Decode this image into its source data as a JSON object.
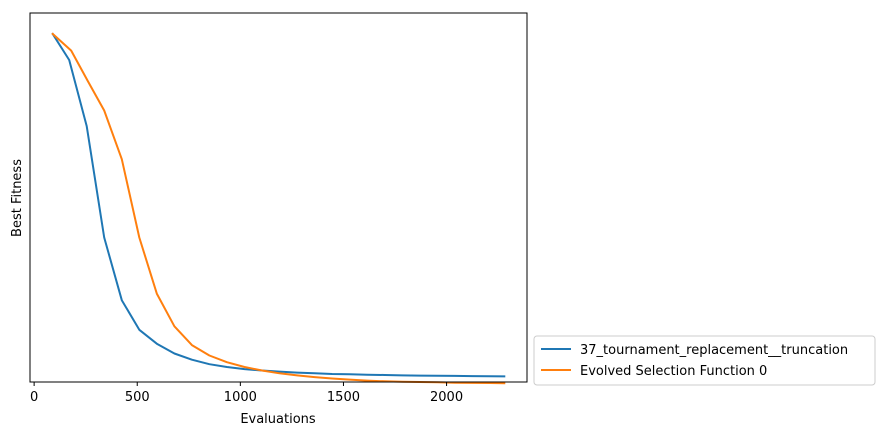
{
  "chart_data": {
    "type": "line",
    "title": "",
    "xlabel": "Evaluations",
    "ylabel": "Best Fitness",
    "xlim": [
      -20,
      2390
    ],
    "ylim": [
      0.0,
      1.06
    ],
    "x_ticks": [
      0,
      500,
      1000,
      1500,
      2000
    ],
    "x_tick_labels": [
      "0",
      "500",
      "1000",
      "1500",
      "2000"
    ],
    "y_ticks_visible": false,
    "grid": false,
    "legend_position": "outside-lower-right",
    "series": [
      {
        "name": "37_tournament_replacement__truncation",
        "color": "#1f77b4",
        "x": [
          90,
          170,
          255,
          340,
          425,
          510,
          595,
          680,
          765,
          850,
          935,
          1020,
          1105,
          1190,
          1275,
          1360,
          1445,
          1530,
          1615,
          1700,
          1785,
          1870,
          1955,
          2040,
          2125,
          2210,
          2280
        ],
        "y": [
          1.0,
          0.925,
          0.735,
          0.415,
          0.235,
          0.15,
          0.11,
          0.082,
          0.064,
          0.051,
          0.043,
          0.037,
          0.033,
          0.03,
          0.027,
          0.025,
          0.023,
          0.022,
          0.021,
          0.02,
          0.019,
          0.0185,
          0.018,
          0.0175,
          0.017,
          0.0165,
          0.016
        ]
      },
      {
        "name": "Evolved Selection Function 0",
        "color": "#ff7f0e",
        "x": [
          90,
          180,
          260,
          340,
          425,
          510,
          595,
          680,
          765,
          850,
          935,
          1020,
          1105,
          1190,
          1275,
          1360,
          1445,
          1530,
          1615,
          1700,
          1785,
          1870,
          1955,
          2040,
          2125,
          2210,
          2280
        ],
        "y": [
          1.0,
          0.952,
          0.865,
          0.78,
          0.64,
          0.415,
          0.254,
          0.16,
          0.106,
          0.076,
          0.057,
          0.043,
          0.033,
          0.025,
          0.019,
          0.014,
          0.01,
          0.007,
          0.004,
          0.002,
          0.001,
          0.0,
          -0.001,
          -0.002,
          -0.0025,
          -0.003,
          -0.0035
        ]
      }
    ]
  }
}
